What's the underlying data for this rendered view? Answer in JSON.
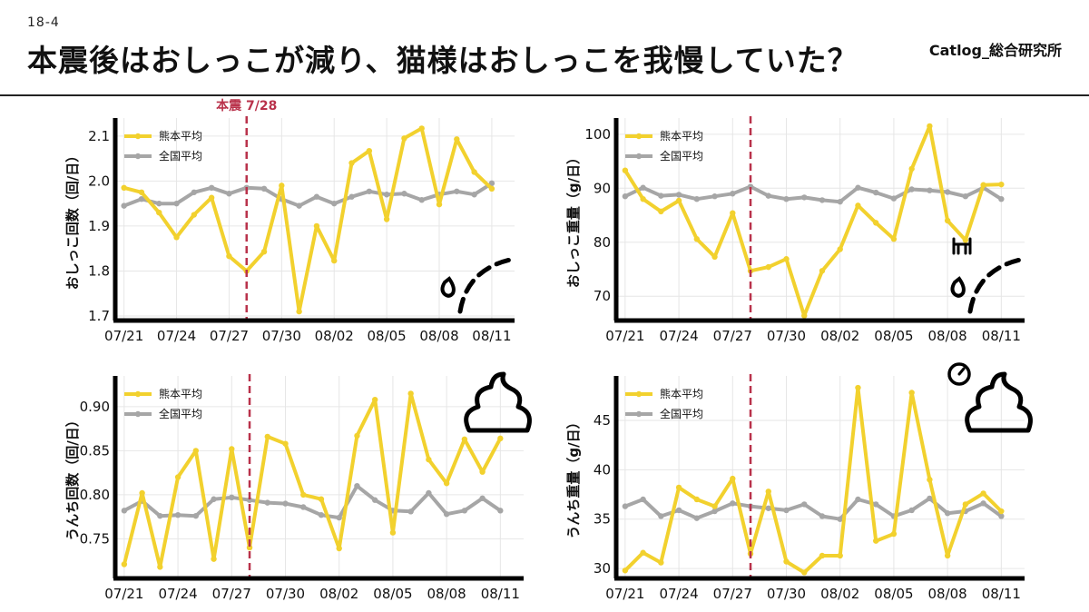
{
  "header": {
    "slide_number": "18-4",
    "title": "本震後はおしっこが減り、猫様はおしっこを我慢していた？",
    "brand": "Catlog_総合研究所"
  },
  "colors": {
    "kumamoto": "#F2D12E",
    "national": "#A6A6A6",
    "event_line": "#B9324B",
    "grid": "#E6E6E6",
    "axis": "#000000"
  },
  "chart_data": [
    {
      "id": "pee-count",
      "type": "line",
      "ylabel": "おしっこ回数（回/日）",
      "ylim": [
        1.69,
        2.14
      ],
      "yticks": [
        1.7,
        1.8,
        1.9,
        2.0,
        2.1
      ],
      "ytick_labels": [
        "1.7",
        "1.8",
        "1.9",
        "2.0",
        "2.1"
      ],
      "xlim": [
        -0.5,
        22.3
      ],
      "xticks": [
        0,
        3,
        6,
        9,
        12,
        15,
        18,
        21
      ],
      "xtick_labels": [
        "07/21",
        "07/24",
        "07/27",
        "07/30",
        "08/02",
        "08/05",
        "08/08",
        "08/11"
      ],
      "event": {
        "x": 7,
        "label": "本震 7/28"
      },
      "icon": "pee-icon",
      "series": [
        {
          "name": "熊本平均",
          "color": "#F2D12E",
          "values": [
            1.985,
            1.975,
            1.93,
            1.875,
            1.925,
            1.963,
            1.833,
            1.8,
            1.843,
            1.99,
            1.71,
            1.9,
            1.823,
            2.04,
            2.067,
            1.915,
            2.095,
            2.117,
            1.948,
            2.093,
            2.02,
            1.983
          ]
        },
        {
          "name": "全国平均",
          "color": "#A6A6A6",
          "values": [
            1.945,
            1.96,
            1.95,
            1.95,
            1.975,
            1.985,
            1.972,
            1.985,
            1.983,
            1.96,
            1.945,
            1.965,
            1.95,
            1.965,
            1.977,
            1.97,
            1.972,
            1.958,
            1.97,
            1.977,
            1.97,
            1.995
          ]
        }
      ]
    },
    {
      "id": "pee-weight",
      "type": "line",
      "ylabel": "おしっこ重量（g/日）",
      "ylim": [
        65.5,
        103
      ],
      "yticks": [
        70,
        80,
        90,
        100
      ],
      "ytick_labels": [
        "70",
        "80",
        "90",
        "100"
      ],
      "xlim": [
        -0.5,
        22.3
      ],
      "xticks": [
        0,
        3,
        6,
        9,
        12,
        15,
        18,
        21
      ],
      "xtick_labels": [
        "07/21",
        "07/24",
        "07/27",
        "07/30",
        "08/02",
        "08/05",
        "08/08",
        "08/11"
      ],
      "event": {
        "x": 7,
        "label": ""
      },
      "icon": "pee-weight-icon",
      "series": [
        {
          "name": "熊本平均",
          "color": "#F2D12E",
          "values": [
            93.3,
            88.0,
            85.7,
            87.7,
            80.6,
            77.3,
            85.4,
            74.7,
            75.4,
            76.9,
            66.4,
            74.7,
            78.7,
            86.8,
            83.6,
            80.6,
            93.6,
            101.5,
            84.0,
            80.4,
            90.6,
            90.7
          ]
        },
        {
          "name": "全国平均",
          "color": "#A6A6A6",
          "values": [
            88.5,
            90.1,
            88.6,
            88.8,
            88.0,
            88.5,
            89.0,
            90.3,
            88.6,
            88.0,
            88.3,
            87.8,
            87.5,
            90.1,
            89.2,
            88.1,
            89.8,
            89.6,
            89.3,
            88.5,
            90.1,
            88.0
          ]
        }
      ]
    },
    {
      "id": "poop-count",
      "type": "line",
      "ylabel": "うんち回数（回/日）",
      "ylim": [
        0.705,
        0.935
      ],
      "yticks": [
        0.75,
        0.8,
        0.85,
        0.9
      ],
      "ytick_labels": [
        "0.75",
        "0.80",
        "0.85",
        "0.90"
      ],
      "xlim": [
        -0.5,
        22.3
      ],
      "xticks": [
        0,
        3,
        6,
        9,
        12,
        15,
        18,
        21
      ],
      "xtick_labels": [
        "07/21",
        "07/24",
        "07/27",
        "07/30",
        "08/02",
        "08/05",
        "08/08",
        "08/11"
      ],
      "event": {
        "x": 7,
        "label": ""
      },
      "icon": "poop-icon",
      "series": [
        {
          "name": "熊本平均",
          "color": "#F2D12E",
          "values": [
            0.721,
            0.802,
            0.718,
            0.82,
            0.85,
            0.727,
            0.852,
            0.74,
            0.866,
            0.858,
            0.8,
            0.795,
            0.739,
            0.867,
            0.908,
            0.757,
            0.915,
            0.84,
            0.813,
            0.863,
            0.826,
            0.864
          ]
        },
        {
          "name": "全国平均",
          "color": "#A6A6A6",
          "values": [
            0.782,
            0.793,
            0.776,
            0.777,
            0.776,
            0.795,
            0.797,
            0.794,
            0.791,
            0.79,
            0.786,
            0.777,
            0.774,
            0.81,
            0.794,
            0.782,
            0.781,
            0.802,
            0.778,
            0.782,
            0.796,
            0.782
          ]
        }
      ]
    },
    {
      "id": "poop-weight",
      "type": "line",
      "ylabel": "うんち重量（g/日）",
      "ylim": [
        29,
        49.5
      ],
      "yticks": [
        30,
        35,
        40,
        45
      ],
      "ytick_labels": [
        "30",
        "35",
        "40",
        "45"
      ],
      "xlim": [
        -0.5,
        22.3
      ],
      "xticks": [
        0,
        3,
        6,
        9,
        12,
        15,
        18,
        21
      ],
      "xtick_labels": [
        "07/21",
        "07/24",
        "07/27",
        "07/30",
        "08/02",
        "08/05",
        "08/08",
        "08/11"
      ],
      "event": {
        "x": 7,
        "label": ""
      },
      "icon": "poop-weight-icon",
      "series": [
        {
          "name": "熊本平均",
          "color": "#F2D12E",
          "values": [
            29.8,
            31.6,
            30.6,
            38.2,
            37.0,
            36.3,
            39.1,
            31.5,
            37.8,
            30.7,
            29.6,
            31.3,
            31.3,
            48.3,
            32.8,
            33.5,
            47.8,
            39.0,
            31.3,
            36.5,
            37.6,
            35.8
          ]
        },
        {
          "name": "全国平均",
          "color": "#A6A6A6",
          "values": [
            36.3,
            37.0,
            35.3,
            35.9,
            35.1,
            35.8,
            36.6,
            36.3,
            36.1,
            35.9,
            36.5,
            35.3,
            35.0,
            37.0,
            36.5,
            35.3,
            35.9,
            37.1,
            35.6,
            35.8,
            36.6,
            35.3
          ]
        }
      ]
    }
  ]
}
